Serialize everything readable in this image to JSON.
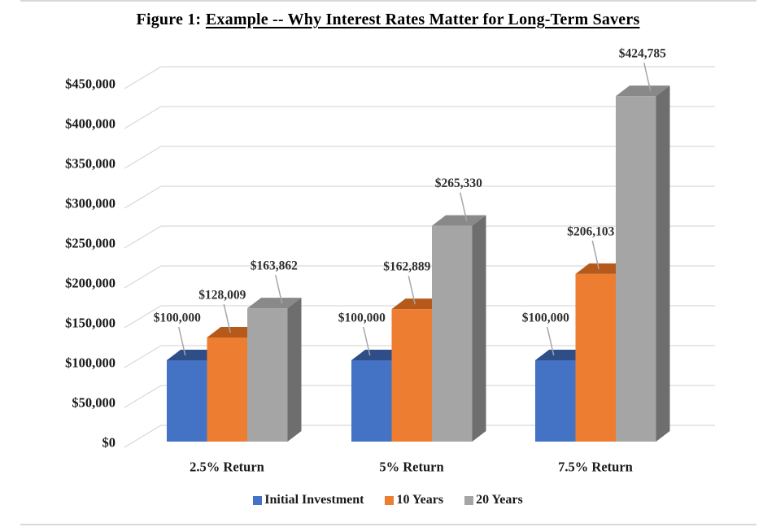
{
  "title": {
    "prefix": "Figure 1:",
    "underlined": "Example -- Why Interest Rates Matter for Long-Term Savers"
  },
  "chart_data": {
    "type": "bar",
    "style": "3d",
    "title": "Figure 1: Example -- Why Interest Rates Matter for Long-Term Savers",
    "categories": [
      "2.5% Return",
      "5% Return",
      "7.5% Return"
    ],
    "series": [
      {
        "name": "Initial Investment",
        "color": "#4472C4",
        "color_top": "#2F4D87",
        "color_side": "#253C6B",
        "values": [
          100000,
          100000,
          100000
        ],
        "labels": [
          "$100,000",
          "$100,000",
          "$100,000"
        ]
      },
      {
        "name": "10 Years",
        "color": "#ED7D31",
        "color_top": "#B55A1B",
        "color_side": "#8F4A1F",
        "values": [
          128009,
          162889,
          206103
        ],
        "labels": [
          "$128,009",
          "$162,889",
          "$206,103"
        ]
      },
      {
        "name": "20 Years",
        "color": "#A5A5A5",
        "color_top": "#898989",
        "color_side": "#6E6E6E",
        "values": [
          163862,
          265330,
          424785
        ],
        "labels": [
          "$163,862",
          "$265,330",
          "$424,785"
        ]
      }
    ],
    "y_axis": {
      "min": 0,
      "max": 450000,
      "step": 50000,
      "tick_labels": [
        "$0",
        "$50,000",
        "$100,000",
        "$150,000",
        "$200,000",
        "$250,000",
        "$300,000",
        "$350,000",
        "$400,000",
        "$450,000"
      ]
    },
    "legend_position": "bottom",
    "grid_on": true,
    "grid_color": "#D9D9D9",
    "leader_color": "#A6A6A6",
    "label_color": "#2F2F2F",
    "axis_text_color": "#1A1A1A"
  }
}
